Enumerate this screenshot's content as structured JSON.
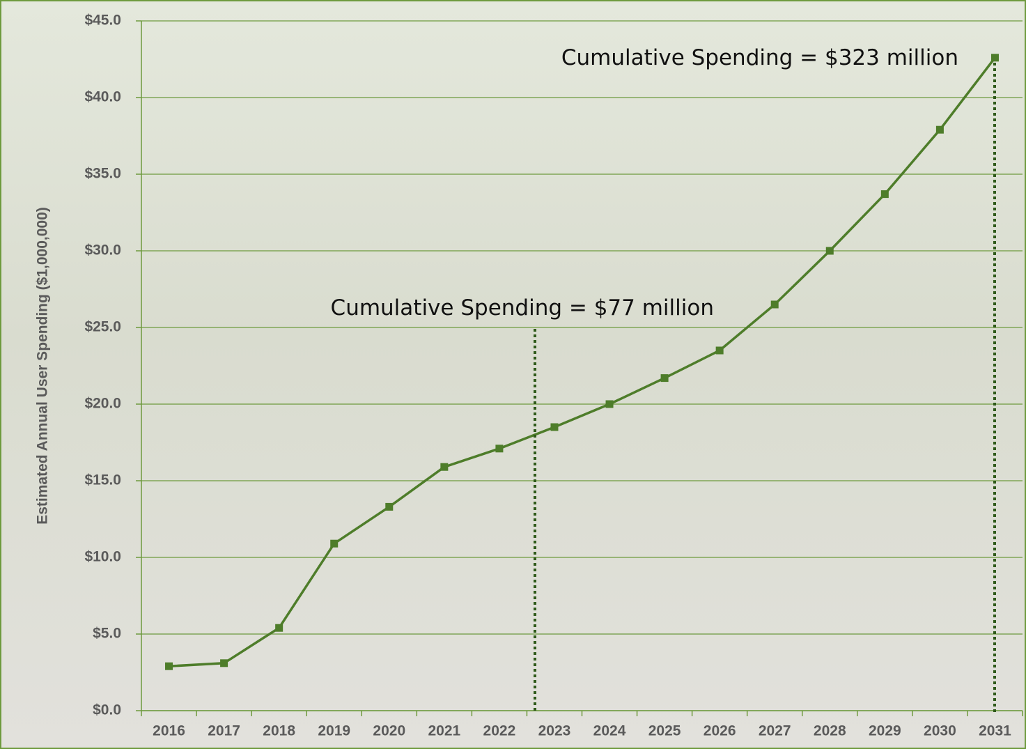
{
  "chart_data": {
    "type": "line",
    "y_label": "Estimated Annual User Spending ($1,000,000)",
    "categories": [
      "2016",
      "2017",
      "2018",
      "2019",
      "2020",
      "2021",
      "2022",
      "2023",
      "2024",
      "2025",
      "2026",
      "2027",
      "2028",
      "2029",
      "2030",
      "2031"
    ],
    "values": [
      2.9,
      3.1,
      5.4,
      10.9,
      13.3,
      15.9,
      17.1,
      18.5,
      20.0,
      21.7,
      23.5,
      26.5,
      30.0,
      33.7,
      37.9,
      42.6
    ],
    "color": "#4e7d2a",
    "ylim": [
      0,
      45
    ],
    "yticks": [
      {
        "value": 0,
        "label": "$0.0"
      },
      {
        "value": 5,
        "label": "$5.0"
      },
      {
        "value": 10,
        "label": "$10.0"
      },
      {
        "value": 15,
        "label": "$15.0"
      },
      {
        "value": 20,
        "label": "$20.0"
      },
      {
        "value": 25,
        "label": "$25.0"
      },
      {
        "value": 30,
        "label": "$30.0"
      },
      {
        "value": 35,
        "label": "$35.0"
      },
      {
        "value": 40,
        "label": "$40.0"
      },
      {
        "value": 45,
        "label": "$45.0"
      }
    ],
    "grid": true,
    "annotations": [
      "Cumulative Spending = $77 million",
      "Cumulative Spending = $323 million"
    ]
  }
}
